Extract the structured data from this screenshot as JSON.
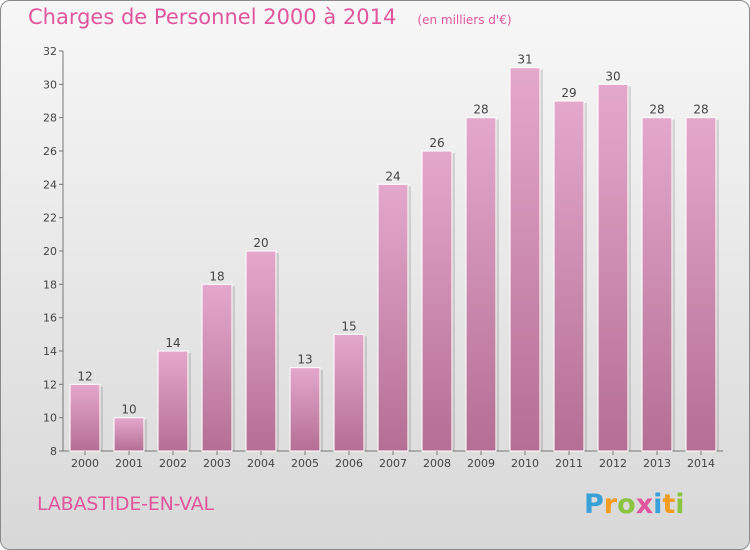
{
  "header": {
    "title": "Charges de Personnel 2000 à 2014",
    "subtitle": "(en milliers d'€)"
  },
  "commune": "LABASTIDE-EN-VAL",
  "logo": {
    "text": "Proxiti",
    "letters": [
      "P",
      "r",
      "o",
      "x",
      "i",
      "t",
      "i"
    ]
  },
  "colors": {
    "bar_top": "#e4a8cc",
    "bar_bottom": "#b56e94",
    "title": "#e0559e",
    "axis": "#555555"
  },
  "chart_data": {
    "type": "bar",
    "title": "Charges de Personnel 2000 à 2014",
    "subtitle": "(en milliers d'€)",
    "categories": [
      "2000",
      "2001",
      "2002",
      "2003",
      "2004",
      "2005",
      "2006",
      "2007",
      "2008",
      "2009",
      "2010",
      "2011",
      "2012",
      "2013",
      "2014"
    ],
    "values": [
      12,
      10,
      14,
      18,
      20,
      13,
      15,
      24,
      26,
      28,
      31,
      29,
      30,
      28,
      28
    ],
    "xlabel": "",
    "ylabel": "",
    "ylim": [
      8,
      32
    ],
    "yticks": [
      8,
      10,
      12,
      14,
      16,
      18,
      20,
      22,
      24,
      26,
      28,
      30,
      32
    ],
    "data_labels": true,
    "grid": false,
    "legend": "none"
  }
}
